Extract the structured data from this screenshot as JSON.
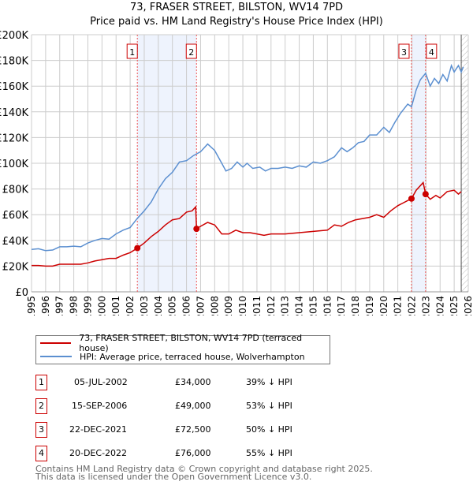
{
  "title": "73, FRASER STREET, BILSTON, WV14 7PD",
  "subtitle": "Price paid vs. HM Land Registry's House Price Index (HPI)",
  "chart_data": {
    "type": "line",
    "ylim": [
      0,
      200000
    ],
    "xlim": [
      1995,
      2026
    ],
    "yticks": [
      {
        "v": 0,
        "label": "£0"
      },
      {
        "v": 20000,
        "label": "£20K"
      },
      {
        "v": 40000,
        "label": "£40K"
      },
      {
        "v": 60000,
        "label": "£60K"
      },
      {
        "v": 80000,
        "label": "£80K"
      },
      {
        "v": 100000,
        "label": "£100K"
      },
      {
        "v": 120000,
        "label": "£120K"
      },
      {
        "v": 140000,
        "label": "£140K"
      },
      {
        "v": 160000,
        "label": "£160K"
      },
      {
        "v": 180000,
        "label": "£180K"
      },
      {
        "v": 200000,
        "label": "£200K"
      }
    ],
    "xticks": [
      "1995",
      "1996",
      "1997",
      "1998",
      "1999",
      "2000",
      "2001",
      "2002",
      "2003",
      "2004",
      "2005",
      "2006",
      "2007",
      "2008",
      "2009",
      "2010",
      "2011",
      "2012",
      "2013",
      "2014",
      "2015",
      "2016",
      "2017",
      "2018",
      "2019",
      "2020",
      "2021",
      "2022",
      "2023",
      "2024",
      "2025",
      "2026"
    ],
    "grid": true,
    "forecast_from": 2025.5,
    "series": [
      {
        "name": "HPI: Average price, terraced house, Wolverhampton",
        "color": "#5b8fd0",
        "points": [
          [
            1995,
            33000
          ],
          [
            1995.5,
            33500
          ],
          [
            1996,
            32000
          ],
          [
            1996.5,
            32500
          ],
          [
            1997,
            35000
          ],
          [
            1997.5,
            35000
          ],
          [
            1998,
            35500
          ],
          [
            1998.5,
            35000
          ],
          [
            1999,
            38000
          ],
          [
            1999.5,
            40000
          ],
          [
            2000,
            41500
          ],
          [
            2000.5,
            41000
          ],
          [
            2001,
            45000
          ],
          [
            2001.5,
            48000
          ],
          [
            2002,
            50000
          ],
          [
            2002.5,
            57000
          ],
          [
            2003,
            63000
          ],
          [
            2003.5,
            70000
          ],
          [
            2004,
            80000
          ],
          [
            2004.5,
            88000
          ],
          [
            2005,
            93000
          ],
          [
            2005.5,
            101000
          ],
          [
            2006,
            102000
          ],
          [
            2006.5,
            106000
          ],
          [
            2007,
            109000
          ],
          [
            2007.5,
            115000
          ],
          [
            2008,
            110000
          ],
          [
            2008.5,
            100000
          ],
          [
            2008.8,
            94000
          ],
          [
            2009.2,
            96000
          ],
          [
            2009.6,
            101000
          ],
          [
            2010,
            97000
          ],
          [
            2010.3,
            100000
          ],
          [
            2010.7,
            96000
          ],
          [
            2011.2,
            97000
          ],
          [
            2011.6,
            94000
          ],
          [
            2012,
            96000
          ],
          [
            2012.5,
            96000
          ],
          [
            2013,
            97000
          ],
          [
            2013.5,
            96000
          ],
          [
            2014,
            98000
          ],
          [
            2014.5,
            97000
          ],
          [
            2015,
            101000
          ],
          [
            2015.5,
            100000
          ],
          [
            2016,
            102000
          ],
          [
            2016.5,
            105000
          ],
          [
            2017,
            112000
          ],
          [
            2017.4,
            109000
          ],
          [
            2017.8,
            112000
          ],
          [
            2018.2,
            116000
          ],
          [
            2018.6,
            117000
          ],
          [
            2019,
            122000
          ],
          [
            2019.5,
            122000
          ],
          [
            2020,
            128000
          ],
          [
            2020.4,
            124000
          ],
          [
            2020.8,
            132000
          ],
          [
            2021.2,
            139000
          ],
          [
            2021.7,
            146000
          ],
          [
            2021.97,
            144000
          ],
          [
            2022.3,
            157000
          ],
          [
            2022.6,
            165000
          ],
          [
            2022.97,
            170000
          ],
          [
            2023.3,
            160000
          ],
          [
            2023.6,
            166000
          ],
          [
            2023.9,
            162000
          ],
          [
            2024.2,
            169000
          ],
          [
            2024.5,
            164000
          ],
          [
            2024.8,
            176000
          ],
          [
            2025.0,
            171000
          ],
          [
            2025.3,
            176000
          ],
          [
            2025.5,
            171000
          ],
          [
            2025.65,
            175000
          ]
        ]
      },
      {
        "name": "73, FRASER STREET, BILSTON, WV14 7PD (terraced house)",
        "color": "#cc0000",
        "points": [
          [
            1995,
            20500
          ],
          [
            1995.5,
            20500
          ],
          [
            1996,
            20000
          ],
          [
            1996.5,
            20000
          ],
          [
            1997,
            21500
          ],
          [
            1997.5,
            21500
          ],
          [
            1998,
            21500
          ],
          [
            1998.5,
            21500
          ],
          [
            1999,
            22500
          ],
          [
            1999.5,
            24000
          ],
          [
            2000,
            25000
          ],
          [
            2000.5,
            26000
          ],
          [
            2001,
            26000
          ],
          [
            2001.5,
            28500
          ],
          [
            2002,
            30500
          ],
          [
            2002.51,
            34000
          ],
          [
            2003,
            38000
          ],
          [
            2003.5,
            43000
          ],
          [
            2004,
            47000
          ],
          [
            2004.5,
            52000
          ],
          [
            2005,
            56000
          ],
          [
            2005.5,
            57000
          ],
          [
            2006,
            62000
          ],
          [
            2006.4,
            63000
          ],
          [
            2006.65,
            66000
          ],
          [
            2006.71,
            49000
          ],
          [
            2007,
            51000
          ],
          [
            2007.5,
            54000
          ],
          [
            2008,
            52000
          ],
          [
            2008.5,
            45000
          ],
          [
            2009,
            45000
          ],
          [
            2009.5,
            48000
          ],
          [
            2010,
            46000
          ],
          [
            2010.5,
            46000
          ],
          [
            2011,
            45000
          ],
          [
            2011.5,
            44000
          ],
          [
            2012,
            45000
          ],
          [
            2013,
            45000
          ],
          [
            2014,
            46000
          ],
          [
            2015,
            47000
          ],
          [
            2016,
            48000
          ],
          [
            2016.5,
            52000
          ],
          [
            2017,
            51000
          ],
          [
            2017.5,
            54000
          ],
          [
            2018,
            56000
          ],
          [
            2019,
            58000
          ],
          [
            2019.5,
            60000
          ],
          [
            2020,
            58000
          ],
          [
            2020.5,
            63000
          ],
          [
            2021,
            67000
          ],
          [
            2021.97,
            72500
          ],
          [
            2022.3,
            79000
          ],
          [
            2022.8,
            85000
          ],
          [
            2022.97,
            76000
          ],
          [
            2023.3,
            72000
          ],
          [
            2023.7,
            75000
          ],
          [
            2024,
            73000
          ],
          [
            2024.5,
            78000
          ],
          [
            2025,
            79000
          ],
          [
            2025.3,
            76000
          ],
          [
            2025.5,
            78000
          ]
        ]
      }
    ],
    "sales": [
      {
        "id": "1",
        "x": 2002.51,
        "y": 34000
      },
      {
        "id": "2",
        "x": 2006.71,
        "y": 49000
      },
      {
        "id": "3",
        "x": 2021.97,
        "y": 72500
      },
      {
        "id": "4",
        "x": 2022.97,
        "y": 76000
      }
    ],
    "shaded": [
      [
        2002.51,
        2006.71
      ],
      [
        2021.97,
        2022.97
      ]
    ]
  },
  "legend": [
    {
      "label": "73, FRASER STREET, BILSTON, WV14 7PD (terraced house)",
      "color": "#cc0000"
    },
    {
      "label": "HPI: Average price, terraced house, Wolverhampton",
      "color": "#5b8fd0"
    }
  ],
  "table": [
    {
      "num": "1",
      "date": "05-JUL-2002",
      "price": "£34,000",
      "hpi": "39% ↓ HPI"
    },
    {
      "num": "2",
      "date": "15-SEP-2006",
      "price": "£49,000",
      "hpi": "53% ↓ HPI"
    },
    {
      "num": "3",
      "date": "22-DEC-2021",
      "price": "£72,500",
      "hpi": "50% ↓ HPI"
    },
    {
      "num": "4",
      "date": "20-DEC-2022",
      "price": "£76,000",
      "hpi": "55% ↓ HPI"
    }
  ],
  "footer": [
    "Contains HM Land Registry data © Crown copyright and database right 2025.",
    "This data is licensed under the Open Government Licence v3.0."
  ]
}
